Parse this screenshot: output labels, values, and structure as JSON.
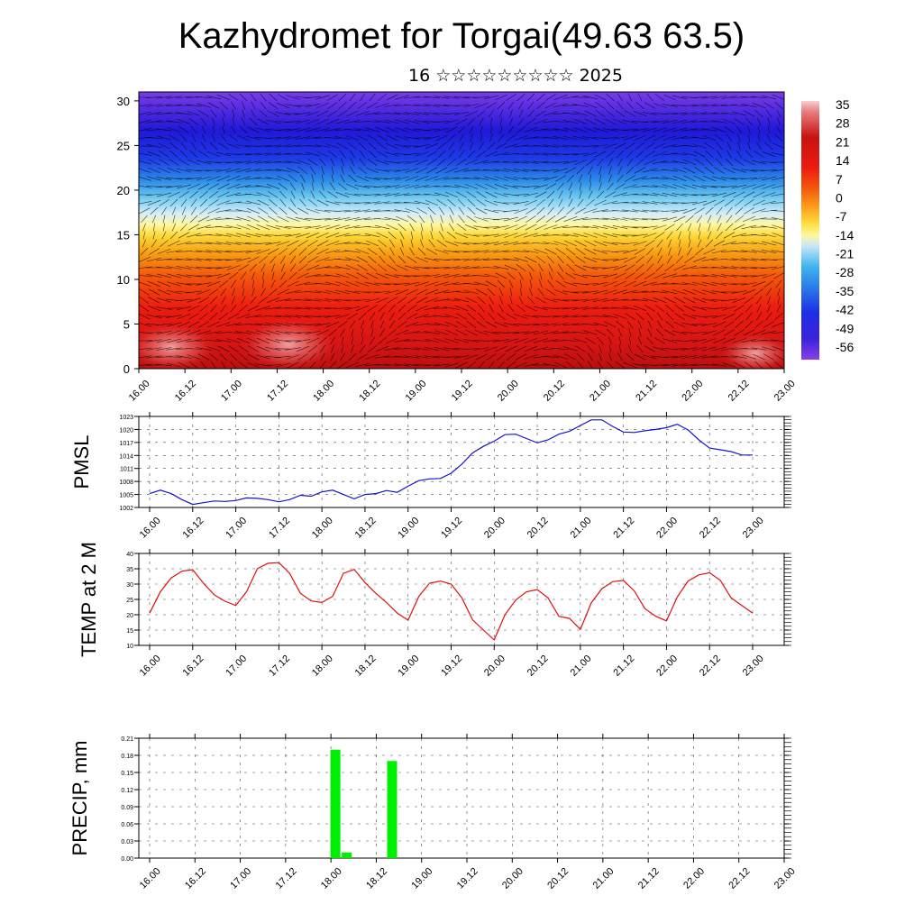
{
  "title": "Kazhydromet for Torgai(49.63 63.5)",
  "subtitle": "16 ☆☆☆☆☆☆☆☆☆ 2025",
  "x_tick_labels": [
    "16.00",
    "16.12",
    "17.00",
    "17.12",
    "18.00",
    "18.12",
    "19.00",
    "19.12",
    "20.00",
    "20.12",
    "21.00",
    "21.12",
    "22.00",
    "22.12",
    "23.00"
  ],
  "colors": {
    "pmsl_line": "#1515c8",
    "temp_line": "#e01010",
    "precip_bar": "#00ee00"
  },
  "chart_data": [
    {
      "type": "heatmap",
      "title": "",
      "xlabel": "",
      "ylabel": "",
      "ylim": [
        0,
        31
      ],
      "y_ticks": [
        0,
        5,
        10,
        15,
        20,
        25,
        30
      ],
      "colorbar_labels": [
        "35",
        "28",
        "21",
        "14",
        "7",
        "0",
        "-7",
        "-14",
        "-21",
        "-28",
        "-35",
        "-42",
        "-49",
        "-56"
      ],
      "colorbar_range": [
        -63,
        42
      ],
      "overlay": "wind barbs",
      "colorscale_description": "red (warm) near surface to yellow around level 15-16, light blue around 20, dark blue/violet near 30"
    },
    {
      "type": "line",
      "ylabel": "PMSL",
      "ylim": [
        1002,
        1023
      ],
      "y_ticks": [
        "1002",
        "1005",
        "1008",
        "1011",
        "1014",
        "1017",
        "1020",
        "1023"
      ],
      "series": [
        {
          "values": [
            1005.2,
            1006.0,
            1005.2,
            1003.8,
            1002.7,
            1003.1,
            1003.5,
            1003.4,
            1003.6,
            1004.2,
            1004.1,
            1003.8,
            1003.3,
            1003.8,
            1004.8,
            1004.6,
            1005.6,
            1006.0,
            1005.0,
            1004.0,
            1005.0,
            1005.2,
            1005.9,
            1005.5,
            1006.9,
            1008.2,
            1008.6,
            1008.7,
            1009.9,
            1012.0,
            1014.6,
            1016.1,
            1017.3,
            1018.8,
            1018.9,
            1017.9,
            1016.9,
            1017.6,
            1018.9,
            1019.6,
            1020.9,
            1022.2,
            1022.2,
            1020.7,
            1019.4,
            1019.3,
            1019.7,
            1020.0,
            1020.4,
            1021.2,
            1019.9,
            1017.6,
            1015.7,
            1015.3,
            1014.9,
            1014.1,
            1014.1
          ]
        }
      ]
    },
    {
      "type": "line",
      "ylabel": "TEMP at 2 M",
      "ylim": [
        10,
        40
      ],
      "y_ticks": [
        "10",
        "15",
        "20",
        "25",
        "30",
        "35",
        "40"
      ],
      "series": [
        {
          "values": [
            20.5,
            27.5,
            32.0,
            34.2,
            34.7,
            30.3,
            26.5,
            24.4,
            23.0,
            27.5,
            35.0,
            36.8,
            37.0,
            33.5,
            27.0,
            24.5,
            24.0,
            26.0,
            33.5,
            34.8,
            30.5,
            27.0,
            24.0,
            20.5,
            18.2,
            26.0,
            30.3,
            31.0,
            30.0,
            25.5,
            18.3,
            15.0,
            11.8,
            20.0,
            24.8,
            27.5,
            28.2,
            25.5,
            19.5,
            18.8,
            15.2,
            23.8,
            28.5,
            30.8,
            31.2,
            27.8,
            22.0,
            19.5,
            18.0,
            25.8,
            31.0,
            33.0,
            33.7,
            31.2,
            25.5,
            23.0,
            20.5
          ]
        }
      ]
    },
    {
      "type": "bar",
      "ylabel": "PRECIP, mm",
      "ylim": [
        0,
        0.21
      ],
      "y_ticks": [
        "0.00",
        "0.03",
        "0.06",
        "0.09",
        "0.12",
        "0.15",
        "0.18",
        "0.21"
      ],
      "bars": [
        {
          "x": "18.00",
          "value": 0.19
        },
        {
          "x": "18.03",
          "value": 0.01
        },
        {
          "x": "18.15",
          "value": 0.17
        }
      ]
    }
  ]
}
